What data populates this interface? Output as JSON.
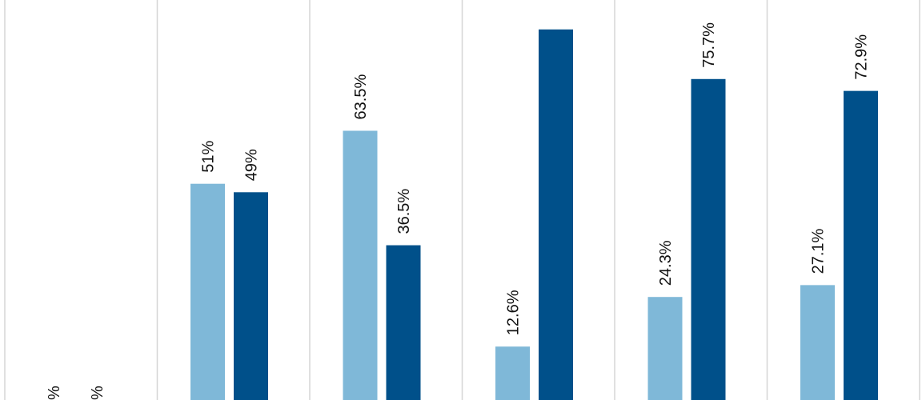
{
  "chart_data": {
    "type": "bar",
    "categories": [
      "",
      "",
      "",
      "",
      "",
      ""
    ],
    "series": [
      {
        "values": [
          null,
          51,
          63.5,
          12.6,
          24.3,
          27.1
        ],
        "labels": [
          "",
          "51%",
          "63.5%",
          "12.6%",
          "24.3%",
          "27.1%"
        ],
        "color": "#7fb8d8"
      },
      {
        "values": [
          null,
          49,
          36.5,
          87.4,
          75.7,
          72.9
        ],
        "labels": [
          "",
          "49%",
          "36.5%",
          "",
          "75.7%",
          "72.9%"
        ],
        "color": "#00508a"
      }
    ],
    "ylim": [
      0,
      100
    ],
    "grid": "vertical separators between categories"
  }
}
